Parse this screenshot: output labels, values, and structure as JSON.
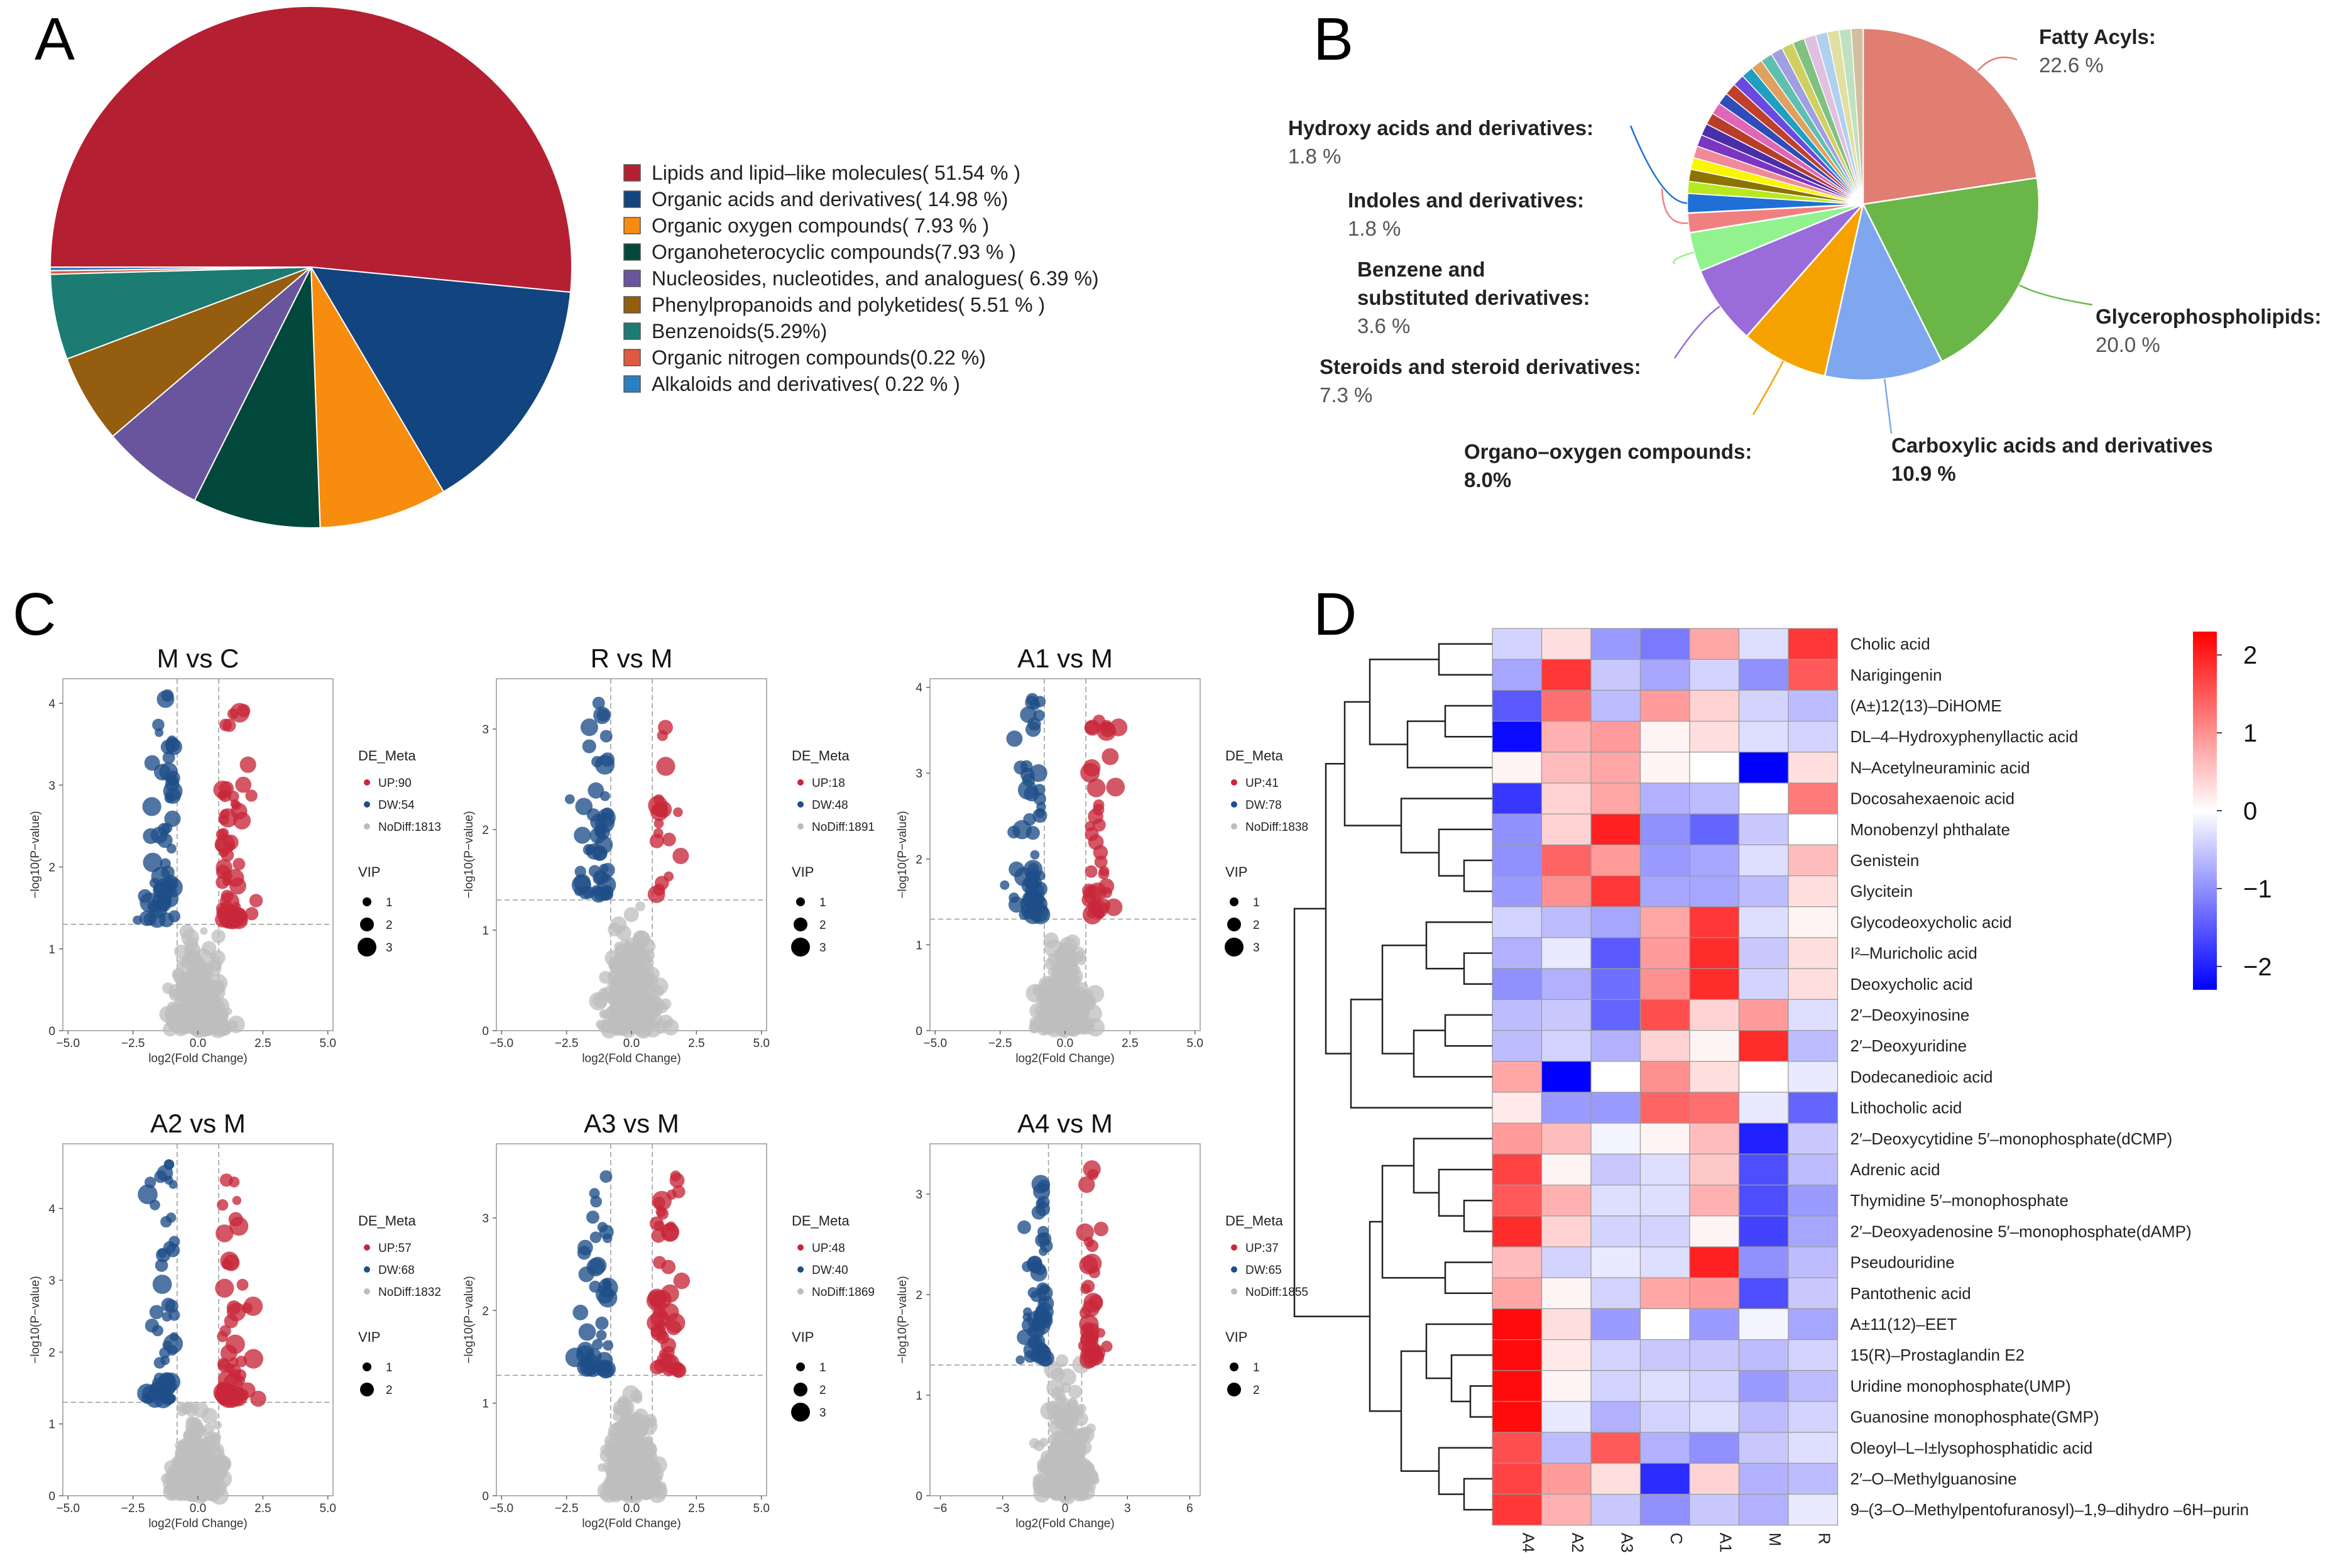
{
  "chart_data": [
    {
      "panel": "A",
      "type": "pie",
      "categories": [
        "Lipids and lipid–like molecules( 51.54 % )",
        "Organic acids and derivatives( 14.98 %)",
        "Organic oxygen compounds( 7.93 % )",
        "Organoheterocyclic compounds(7.93 % )",
        "Nucleosides, nucleotides, and analogues( 6.39 %)",
        "Phenylpropanoids and polyketides( 5.51 % )",
        "Benzenoids(5.29%)",
        "Organic nitrogen compounds(0.22 %)",
        "Alkaloids and derivatives( 0.22 % )"
      ],
      "values": [
        51.54,
        14.98,
        7.93,
        7.93,
        6.39,
        5.51,
        5.29,
        0.22,
        0.22
      ],
      "colors": [
        "#B42032",
        "#124480",
        "#F78C0E",
        "#03483C",
        "#68559D",
        "#945D10",
        "#1C7B72",
        "#E05A3F",
        "#2B80C0"
      ]
    },
    {
      "panel": "B",
      "type": "pie",
      "labeled": [
        {
          "label": "Fatty Acyls:",
          "pct": "22.6 %",
          "value": 22.6,
          "color": "#E07E72",
          "bold_pct": false
        },
        {
          "label": "Glycerophospholipids:",
          "pct": "20.0 %",
          "value": 20.0,
          "color": "#6AB649",
          "bold_pct": false
        },
        {
          "label": "Carboxylic acids and derivatives",
          "pct": "10.9 %",
          "value": 10.9,
          "color": "#7EA7F0",
          "bold_pct": true
        },
        {
          "label": "Organo–oxygen compounds:",
          "pct": "8.0%",
          "value": 8.0,
          "color": "#F5A200",
          "bold_pct": true
        },
        {
          "label": "Steroids and steroid derivatives:",
          "pct": "7.3 %",
          "value": 7.3,
          "color": "#9A6CDA",
          "bold_pct": false
        },
        {
          "label": "Benzene and substituted derivatives:",
          "pct": "3.6 %",
          "value": 3.6,
          "color": "#92F28E",
          "bold_pct": false
        },
        {
          "label": "Indoles and derivatives:",
          "pct": "1.8 %",
          "value": 1.8,
          "color": "#F08080",
          "bold_pct": false
        },
        {
          "label": "Hydroxy acids and derivatives:",
          "pct": "1.8 %",
          "value": 1.8,
          "color": "#1F6FD6",
          "bold_pct": false
        }
      ],
      "other_colors": [
        "#B8E820",
        "#8B7500",
        "#FAF500",
        "#F08A9A",
        "#7A36C0",
        "#4A2EA8",
        "#B83E2A",
        "#E066B8",
        "#2E4DB8",
        "#C0402A",
        "#6B48E0",
        "#20A0C0",
        "#E0A060",
        "#60C0B0",
        "#A0A0E0",
        "#D0D060",
        "#80C080",
        "#E0C0E0",
        "#B0D0F0",
        "#E0E0A0",
        "#C0E0C0",
        "#D0C0A0"
      ],
      "other_total": 24.0
    },
    {
      "panel": "C",
      "type": "scatter",
      "legend_title": "DE_Meta",
      "vip_title": "VIP",
      "xlabel": "log2(Fold Change)",
      "ylabel": "−log10(P−value)",
      "plots": [
        {
          "title": "M vs C",
          "up": "UP:90",
          "dw": "DW:54",
          "nodiff": "NoDiff:1813",
          "up_n": 90,
          "dw_n": 54,
          "x_ticks": [
            "−5.0",
            "−2.5",
            "0.0",
            "2.5",
            "5.0"
          ],
          "xlim": [
            -5.2,
            5.2
          ],
          "y_ticks": [
            "0",
            "1",
            "2",
            "3",
            "4"
          ],
          "ylim": [
            0,
            4.3
          ],
          "vip": [
            "1",
            "2",
            "3"
          ]
        },
        {
          "title": "R vs M",
          "up": "UP:18",
          "dw": "DW:48",
          "nodiff": "NoDiff:1891",
          "up_n": 18,
          "dw_n": 48,
          "x_ticks": [
            "−5.0",
            "−2.5",
            "0.0",
            "2.5",
            "5.0"
          ],
          "xlim": [
            -5.2,
            5.2
          ],
          "y_ticks": [
            "0",
            "1",
            "2",
            "3"
          ],
          "ylim": [
            0,
            3.5
          ],
          "vip": [
            "1",
            "2",
            "3"
          ]
        },
        {
          "title": "A1 vs M",
          "up": "UP:41",
          "dw": "DW:78",
          "nodiff": "NoDiff:1838",
          "up_n": 41,
          "dw_n": 78,
          "x_ticks": [
            "−5.0",
            "−2.5",
            "0.0",
            "2.5",
            "5.0"
          ],
          "xlim": [
            -5.2,
            5.2
          ],
          "y_ticks": [
            "0",
            "1",
            "2",
            "3",
            "4"
          ],
          "ylim": [
            0,
            4.1
          ],
          "vip": [
            "1",
            "2",
            "3"
          ]
        },
        {
          "title": "A2 vs M",
          "up": "UP:57",
          "dw": "DW:68",
          "nodiff": "NoDiff:1832",
          "up_n": 57,
          "dw_n": 68,
          "x_ticks": [
            "−5.0",
            "−2.5",
            "0.0",
            "2.5",
            "5.0"
          ],
          "xlim": [
            -5.2,
            5.2
          ],
          "y_ticks": [
            "0",
            "1",
            "2",
            "3",
            "4"
          ],
          "ylim": [
            0,
            4.9
          ],
          "vip": [
            "1",
            "2"
          ]
        },
        {
          "title": "A3 vs M",
          "up": "UP:48",
          "dw": "DW:40",
          "nodiff": "NoDiff:1869",
          "up_n": 48,
          "dw_n": 40,
          "x_ticks": [
            "−5.0",
            "−2.5",
            "0.0",
            "2.5",
            "5.0"
          ],
          "xlim": [
            -5.2,
            5.2
          ],
          "y_ticks": [
            "0",
            "1",
            "2",
            "3"
          ],
          "ylim": [
            0,
            3.8
          ],
          "vip": [
            "1",
            "2",
            "3"
          ]
        },
        {
          "title": "A4 vs M",
          "up": "UP:37",
          "dw": "DW:65",
          "nodiff": "NoDiff:1855",
          "up_n": 37,
          "dw_n": 65,
          "x_ticks": [
            "−6",
            "−3",
            "0",
            "3",
            "6"
          ],
          "xlim": [
            -6.5,
            6.5
          ],
          "y_ticks": [
            "0",
            "1",
            "2",
            "3"
          ],
          "ylim": [
            0,
            3.5
          ],
          "vip": [
            "1",
            "2"
          ]
        }
      ]
    },
    {
      "panel": "D",
      "type": "heatmap",
      "columns": [
        "A4",
        "A2",
        "A3",
        "C",
        "A1",
        "M",
        "R"
      ],
      "rows": [
        "Cholic acid",
        "Narigingenin",
        "(A±)12(13)–DiHOME",
        "DL–4–Hydroxyphenyllactic acid",
        "N–Acetylneuraminic acid",
        "Docosahexaenoic acid",
        "Monobenzyl phthalate",
        "Genistein",
        "Glycitein",
        "Glycodeoxycholic acid",
        "I²–Muricholic acid",
        "Deoxycholic acid",
        "2′–Deoxyinosine",
        "2′–Deoxyuridine",
        "Dodecanedioic acid",
        "Lithocholic acid",
        "2′–Deoxycytidine 5′–monophosphate(dCMP)",
        "Adrenic acid",
        "Thymidine 5′–monophosphate",
        "2′–Deoxyadenosine 5′–monophosphate(dAMP)",
        "Pseudouridine",
        "Pantothenic acid",
        "A±11(12)–EET",
        "15(R)–Prostaglandin E2",
        "Uridine monophosphate(UMP)",
        "Guanosine monophosphate(GMP)",
        "Oleoyl–L–I±lysophosphatidic acid",
        "2′–O–Methylguanosine",
        "9–(3–O–Methylpentofuranosyl)–1,9–dihydro –6H–purin"
      ],
      "values": [
        [
          -0.4,
          0.3,
          -0.9,
          -1.2,
          0.8,
          -0.3,
          1.8
        ],
        [
          -0.8,
          1.8,
          -0.5,
          -0.8,
          -0.4,
          -1.0,
          1.5
        ],
        [
          -1.5,
          1.3,
          -0.6,
          0.9,
          0.4,
          -0.4,
          -0.6
        ],
        [
          -2.2,
          0.7,
          0.9,
          0.1,
          0.3,
          -0.3,
          -0.4
        ],
        [
          0.1,
          0.6,
          0.8,
          0.1,
          0.0,
          -2.3,
          0.3
        ],
        [
          -1.8,
          0.4,
          0.8,
          -0.7,
          -0.6,
          0.0,
          1.2
        ],
        [
          -1.0,
          0.4,
          2.0,
          -1.0,
          -1.4,
          -0.5,
          0.0
        ],
        [
          -1.0,
          1.4,
          0.9,
          -0.9,
          -0.8,
          -0.3,
          0.6
        ],
        [
          -0.9,
          1.0,
          1.8,
          -0.8,
          -0.8,
          -0.6,
          0.3
        ],
        [
          -0.4,
          -0.6,
          -0.8,
          0.8,
          1.8,
          -0.3,
          0.1
        ],
        [
          -0.7,
          -0.2,
          -1.5,
          0.9,
          1.9,
          -0.5,
          0.3
        ],
        [
          -1.0,
          -0.7,
          -1.3,
          1.0,
          1.9,
          -0.4,
          0.3
        ],
        [
          -0.6,
          -0.5,
          -1.4,
          1.6,
          0.4,
          0.9,
          -0.3
        ],
        [
          -0.6,
          -0.4,
          -0.7,
          0.4,
          0.1,
          1.9,
          -0.6
        ],
        [
          0.8,
          -2.4,
          0.0,
          1.0,
          0.3,
          0.0,
          -0.2
        ],
        [
          0.2,
          -0.9,
          -0.9,
          1.4,
          1.3,
          -0.2,
          -1.4
        ],
        [
          0.9,
          0.6,
          -0.1,
          0.1,
          0.6,
          -2.0,
          -0.5
        ],
        [
          1.7,
          0.1,
          -0.5,
          -0.3,
          0.5,
          -1.6,
          -0.6
        ],
        [
          1.5,
          0.7,
          -0.3,
          -0.3,
          0.7,
          -1.6,
          -0.9
        ],
        [
          1.9,
          0.4,
          -0.4,
          -0.4,
          0.1,
          -1.7,
          -0.8
        ],
        [
          0.6,
          -0.4,
          -0.2,
          -0.3,
          2.0,
          -1.0,
          -0.6
        ],
        [
          0.8,
          0.1,
          -0.4,
          0.8,
          0.9,
          -1.6,
          -0.5
        ],
        [
          2.2,
          0.3,
          -0.9,
          0.0,
          -0.9,
          -0.1,
          -0.8
        ],
        [
          2.2,
          0.2,
          -0.4,
          -0.5,
          -0.5,
          -0.6,
          -0.4
        ],
        [
          2.2,
          0.1,
          -0.4,
          -0.3,
          -0.4,
          -0.9,
          -0.6
        ],
        [
          2.2,
          -0.2,
          -0.7,
          -0.4,
          -0.3,
          -0.6,
          -0.4
        ],
        [
          1.6,
          -0.6,
          1.5,
          -0.7,
          -1.0,
          -0.5,
          -0.3
        ],
        [
          1.7,
          0.9,
          0.3,
          -1.9,
          0.4,
          -0.7,
          -0.6
        ],
        [
          1.8,
          0.7,
          -0.5,
          -1.0,
          -0.5,
          -0.7,
          -0.2
        ]
      ],
      "colorbar_ticks": [
        "2",
        "1",
        "0",
        "−1",
        "−2"
      ],
      "color_range": [
        -2.3,
        2.3
      ]
    }
  ],
  "panel_labels": [
    "A",
    "B",
    "C",
    "D"
  ]
}
